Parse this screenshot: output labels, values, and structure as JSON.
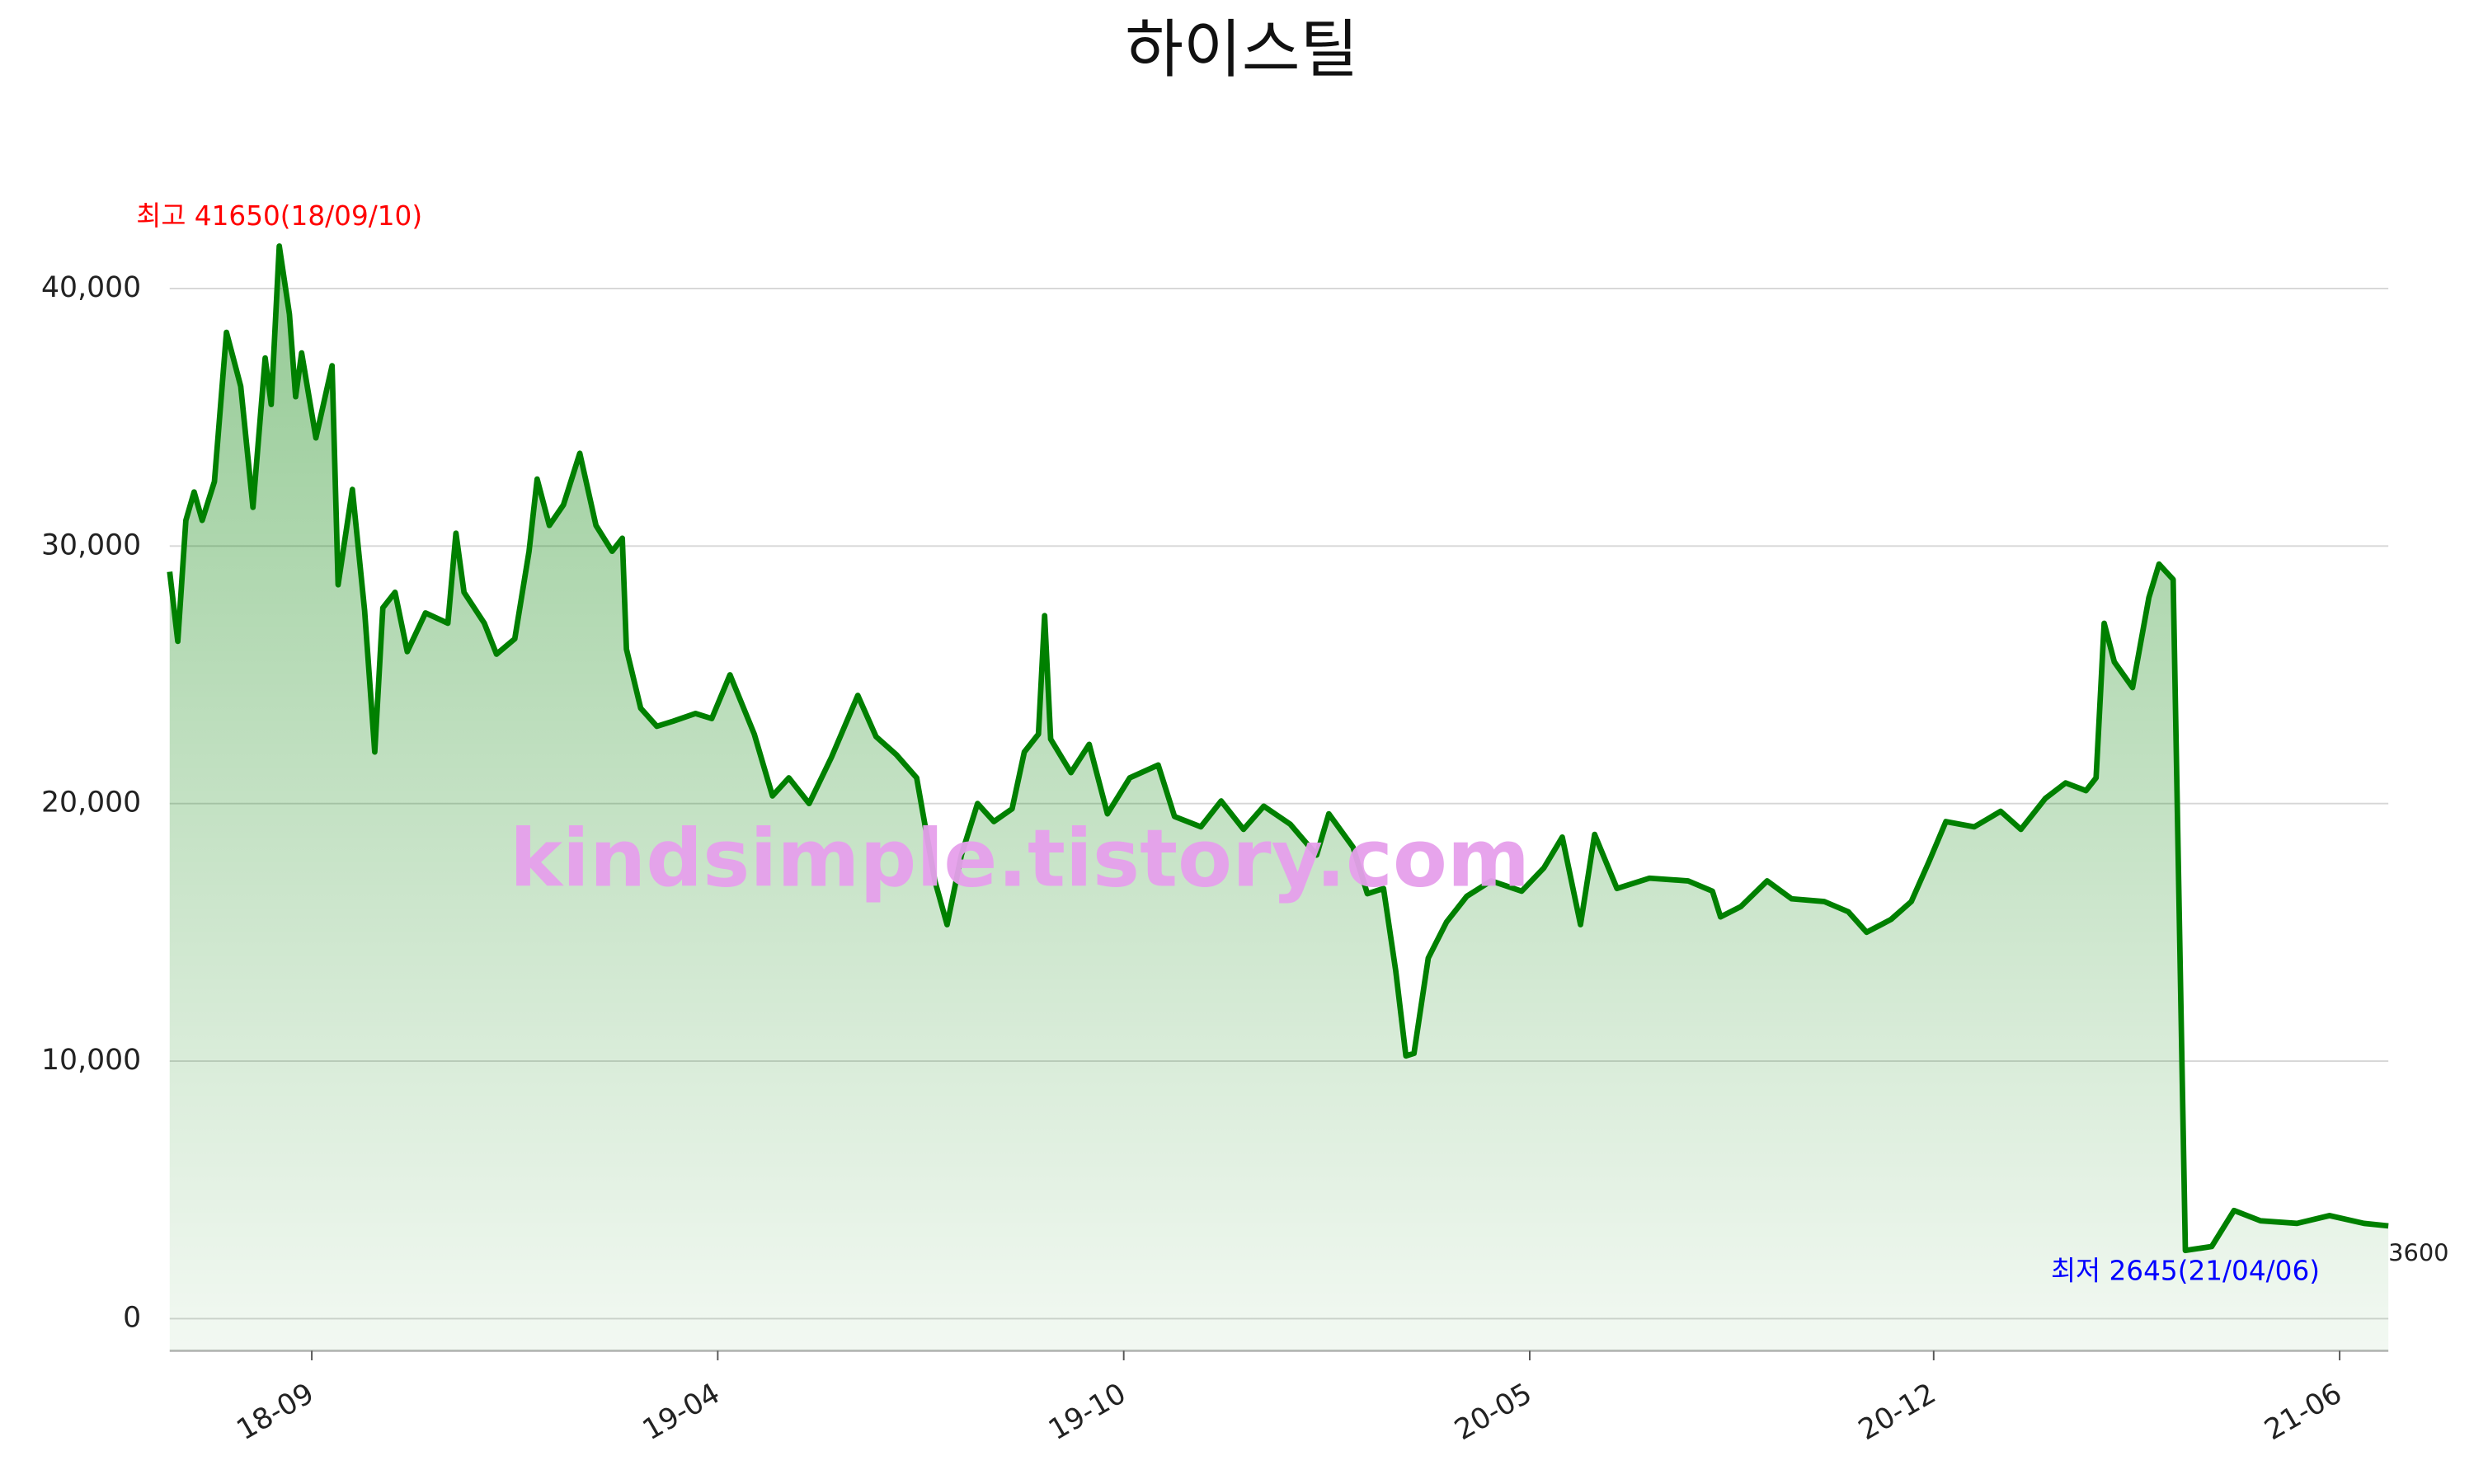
{
  "chart_data": {
    "type": "area",
    "title": "하이스틸",
    "watermark": "kindsimple.tistory.com",
    "series": [
      {
        "name": "하이스틸",
        "color": "#008000",
        "x": [
          "18/07/18",
          "18/07/22",
          "18/07/26",
          "18/07/30",
          "18/08/03",
          "18/08/09",
          "18/08/15",
          "18/08/22",
          "18/08/28",
          "18/09/03",
          "18/09/06",
          "18/09/10",
          "18/09/15",
          "18/09/18",
          "18/09/21",
          "18/09/28",
          "18/10/06",
          "18/10/09",
          "18/10/16",
          "18/10/22",
          "18/10/27",
          "18/10/31",
          "18/11/06",
          "18/11/12",
          "18/11/21",
          "18/12/02",
          "18/12/06",
          "18/12/10",
          "18/12/20",
          "18/12/26",
          "19/01/04",
          "19/01/11",
          "19/01/15",
          "19/01/21",
          "19/01/28",
          "19/02/05",
          "19/02/13",
          "19/02/21",
          "19/02/26",
          "19/02/28",
          "19/03/07",
          "19/03/15",
          "19/03/23",
          "19/04/03",
          "19/04/11",
          "19/04/20",
          "19/05/02",
          "19/05/11",
          "19/05/19",
          "19/05/29",
          "19/06/09",
          "19/06/22",
          "19/07/01",
          "19/07/11",
          "19/07/21",
          "19/07/30",
          "19/08/05",
          "19/08/12",
          "19/08/20",
          "19/08/28",
          "19/09/06",
          "19/09/12",
          "19/09/19",
          "19/09/22",
          "19/09/25",
          "19/10/05",
          "19/10/14",
          "19/10/23",
          "19/11/03",
          "19/11/17",
          "19/11/25",
          "19/12/08",
          "19/12/18",
          "19/12/29",
          "20/01/08",
          "20/01/21",
          "20/02/03",
          "20/02/09",
          "20/02/21",
          "20/02/28",
          "20/03/07",
          "20/03/13",
          "20/03/18",
          "20/03/22",
          "20/03/29",
          "20/04/07",
          "20/04/17",
          "20/04/29",
          "20/05/14",
          "20/05/25",
          "20/06/03",
          "20/06/12",
          "20/06/19",
          "20/06/30",
          "20/07/16",
          "20/08/04",
          "20/08/16",
          "20/08/20",
          "20/08/30",
          "20/09/12",
          "20/09/24",
          "20/10/10",
          "20/10/22",
          "20/10/31",
          "20/11/12",
          "20/11/22",
          "20/12/01",
          "20/12/09",
          "20/12/23",
          "21/01/05",
          "21/01/15",
          "21/01/27",
          "21/02/06",
          "21/02/16",
          "21/02/21",
          "21/02/25",
          "21/03/02",
          "21/03/11",
          "21/03/19",
          "21/03/24",
          "21/03/31",
          "21/04/06",
          "21/04/19",
          "21/04/30",
          "21/05/13",
          "21/05/31",
          "21/06/16",
          "21/07/03",
          "21/07/15"
        ],
        "values": [
          29000,
          26300,
          31000,
          32100,
          31000,
          32500,
          38300,
          36200,
          31500,
          37300,
          35500,
          41650,
          39000,
          35800,
          37500,
          34200,
          37000,
          28500,
          32200,
          27500,
          22000,
          27600,
          28200,
          25900,
          27400,
          27000,
          30500,
          28200,
          27000,
          25800,
          26400,
          29800,
          32600,
          30800,
          31600,
          33600,
          30800,
          29800,
          30300,
          26000,
          23700,
          23000,
          23200,
          23500,
          23300,
          25000,
          22700,
          20300,
          21000,
          20000,
          21800,
          24200,
          22600,
          21900,
          21000,
          17000,
          15300,
          18000,
          20000,
          19300,
          19800,
          22000,
          22700,
          27300,
          22500,
          21200,
          22300,
          19600,
          21000,
          21500,
          19500,
          19100,
          20100,
          19000,
          19900,
          19200,
          18000,
          19600,
          18300,
          16500,
          16700,
          13500,
          10200,
          10300,
          14000,
          15400,
          16400,
          17000,
          16600,
          17500,
          18700,
          15300,
          18800,
          16700,
          17100,
          17000,
          16600,
          15600,
          16000,
          17000,
          16300,
          16200,
          15800,
          15000,
          15500,
          16200,
          17800,
          19300,
          19100,
          19700,
          19000,
          20200,
          20800,
          20500,
          21000,
          27000,
          25500,
          24500,
          28000,
          29300,
          28700,
          2645,
          2800,
          4200,
          3800,
          3700,
          4000,
          3700,
          3600
        ]
      }
    ],
    "annotations": [
      {
        "text": "최고 41650(18/09/10)",
        "x": "18/09/10",
        "y": 41650,
        "color": "#ff0000"
      },
      {
        "text": "최저 2645(21/04/06)",
        "x": "21/04/06",
        "y": 2645,
        "color": "#0000ff"
      }
    ],
    "xlim": [
      "18/07/18",
      "21/07/15"
    ],
    "xticks": [
      {
        "value": "18/09/26",
        "label": "18-09"
      },
      {
        "value": "19/04/14",
        "label": "19-04"
      },
      {
        "value": "19/10/31",
        "label": "19-10"
      },
      {
        "value": "20/05/18",
        "label": "20-05"
      },
      {
        "value": "20/12/03",
        "label": "20-12"
      },
      {
        "value": "21/06/21",
        "label": "21-06"
      }
    ],
    "ylim": [
      -1250,
      44000
    ],
    "yticks": [
      0,
      {
        "value": 10000,
        "label": "10,000"
      },
      {
        "value": 20000,
        "label": "20,000"
      },
      {
        "value": 30000,
        "label": "30,000"
      },
      {
        "value": 40000,
        "label": "40,000"
      }
    ],
    "grid": true
  }
}
